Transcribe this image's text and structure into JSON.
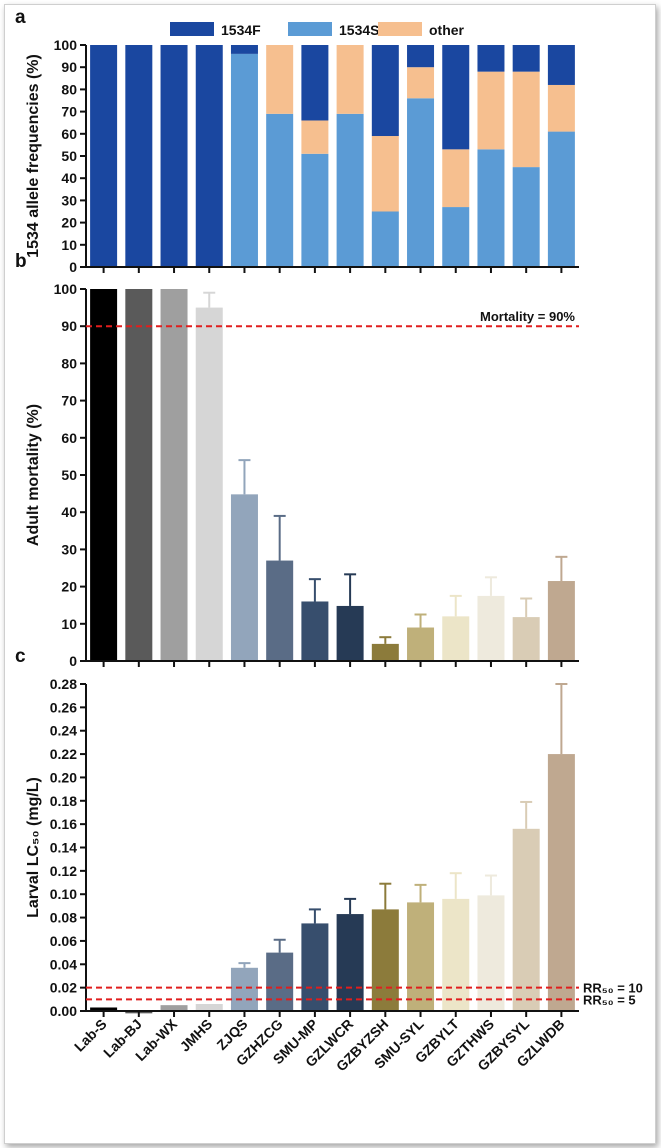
{
  "categories": [
    "Lab-S",
    "Lab-BJ",
    "Lab-WX",
    "JMHS",
    "ZJQS",
    "GZHZCG",
    "SMU-MP",
    "GZLWCR",
    "GZBYZSH",
    "SMU-SYL",
    "GZBYLT",
    "GZTHWS",
    "GZBYSYL",
    "GZLWDB"
  ],
  "bar_colors": [
    "#000000",
    "#5a5a5a",
    "#9f9f9f",
    "#d6d6d6",
    "#92a5bb",
    "#5a6c86",
    "#374e6d",
    "#263a55",
    "#8c7b3b",
    "#bfb07a",
    "#ece5c8",
    "#eeeadd",
    "#d9ccb5",
    "#bfa890"
  ],
  "chart_data": [
    {
      "panel": "a",
      "type": "bar",
      "stacked": true,
      "ylabel": "1534 allele frequencies (%)",
      "ylim": [
        0,
        100
      ],
      "yticks": [
        0,
        10,
        20,
        30,
        40,
        50,
        60,
        70,
        80,
        90,
        100
      ],
      "ytick_labels": [
        "0",
        "10",
        "20",
        "30",
        "40",
        "50",
        "60",
        "70",
        "80",
        "90",
        "100"
      ],
      "legend_position": "top",
      "series": [
        {
          "name": "1534S",
          "color": "#5b9bd5",
          "values": [
            0,
            0,
            0,
            0,
            96,
            69,
            51,
            69,
            25,
            76,
            27,
            53,
            45,
            61
          ]
        },
        {
          "name": "other",
          "color": "#f6bf8f",
          "values": [
            0,
            0,
            0,
            0,
            0,
            31,
            15,
            31,
            34,
            14,
            26,
            35,
            43,
            21
          ]
        },
        {
          "name": "1534F",
          "color": "#1a47a0",
          "values": [
            100,
            100,
            100,
            100,
            4,
            0,
            34,
            0,
            41,
            10,
            47,
            12,
            12,
            18
          ]
        }
      ]
    },
    {
      "panel": "b",
      "type": "bar",
      "ylabel": "Adult mortality (%)",
      "ylim": [
        0,
        100
      ],
      "yticks": [
        0,
        10,
        20,
        30,
        40,
        50,
        60,
        70,
        80,
        90,
        100
      ],
      "ytick_labels": [
        "0",
        "10",
        "20",
        "30",
        "40",
        "50",
        "60",
        "70",
        "80",
        "90",
        "100"
      ],
      "values": [
        100,
        100,
        100,
        95,
        44.8,
        27,
        16,
        14.8,
        4.6,
        9,
        12,
        17.5,
        11.8,
        21.5
      ],
      "errors": [
        0,
        0,
        0,
        4,
        9.2,
        12,
        6,
        8.5,
        1.8,
        3.5,
        5.5,
        5,
        5,
        6.5
      ],
      "reference_line": {
        "value": 90,
        "label": "Mortality = 90%"
      }
    },
    {
      "panel": "c",
      "type": "bar",
      "ylabel": "Larval LC₅₀ (mg/L)",
      "ylim": [
        0,
        0.28
      ],
      "yticks": [
        0,
        0.02,
        0.04,
        0.06,
        0.08,
        0.1,
        0.12,
        0.14,
        0.16,
        0.18,
        0.2,
        0.22,
        0.24,
        0.26,
        0.28
      ],
      "ytick_labels": [
        "0.00",
        "0.02",
        "0.04",
        "0.06",
        "0.08",
        "0.10",
        "0.12",
        "0.14",
        "0.16",
        "0.18",
        "0.20",
        "0.22",
        "0.24",
        "0.26",
        "0.28"
      ],
      "values": [
        0.003,
        -0.002,
        0.005,
        0.006,
        0.037,
        0.05,
        0.075,
        0.083,
        0.087,
        0.093,
        0.096,
        0.099,
        0.156,
        0.22
      ],
      "errors": [
        0,
        0,
        0,
        0,
        0.004,
        0.011,
        0.012,
        0.013,
        0.022,
        0.015,
        0.022,
        0.017,
        0.023,
        0.06
      ],
      "reference_lines": [
        {
          "value": 0.02,
          "label": "RR₅₀ = 10"
        },
        {
          "value": 0.01,
          "label": "RR₅₀ = 5"
        }
      ]
    }
  ]
}
